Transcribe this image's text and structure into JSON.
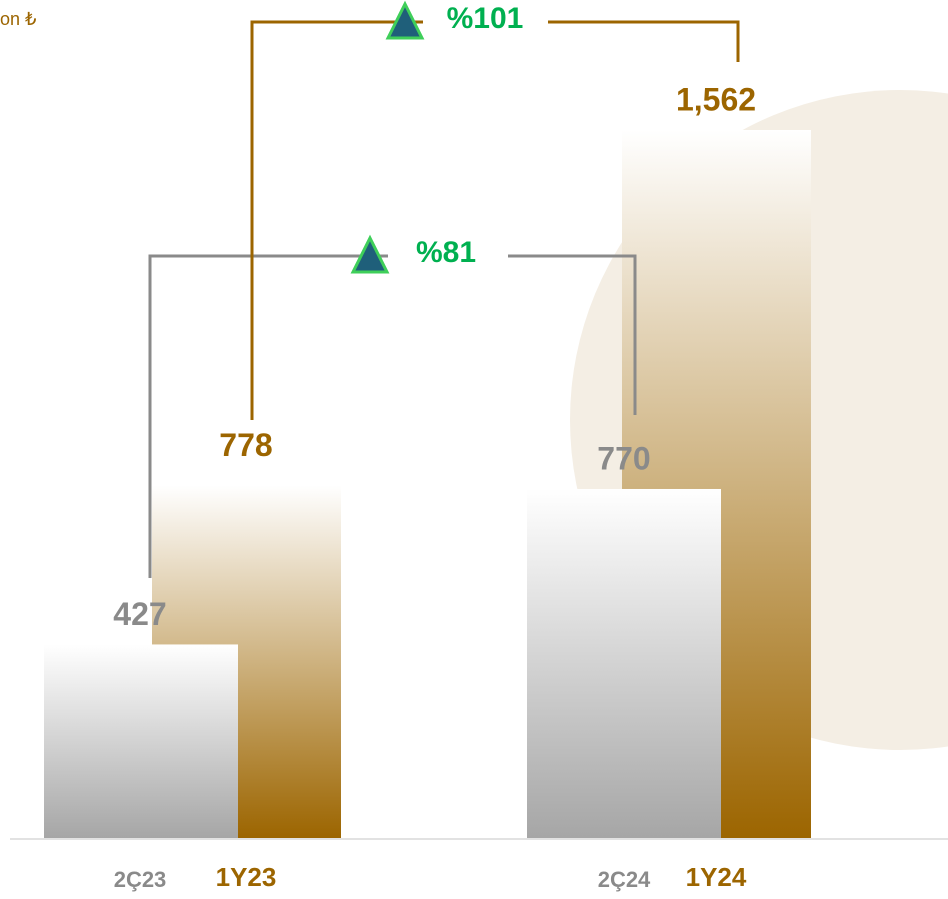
{
  "chart_data": {
    "type": "bar",
    "unit_label": "on ₺",
    "categories": [
      "2Ç23",
      "1Y23",
      "2Ç24",
      "1Y24"
    ],
    "values": [
      427,
      778,
      770,
      1562
    ],
    "value_labels": [
      "427",
      "778",
      "770",
      "1,562"
    ],
    "colors": [
      "#8a8a8a",
      "#9c6500",
      "#8a8a8a",
      "#9c6500"
    ],
    "annotations": [
      "%81",
      "%101"
    ]
  }
}
